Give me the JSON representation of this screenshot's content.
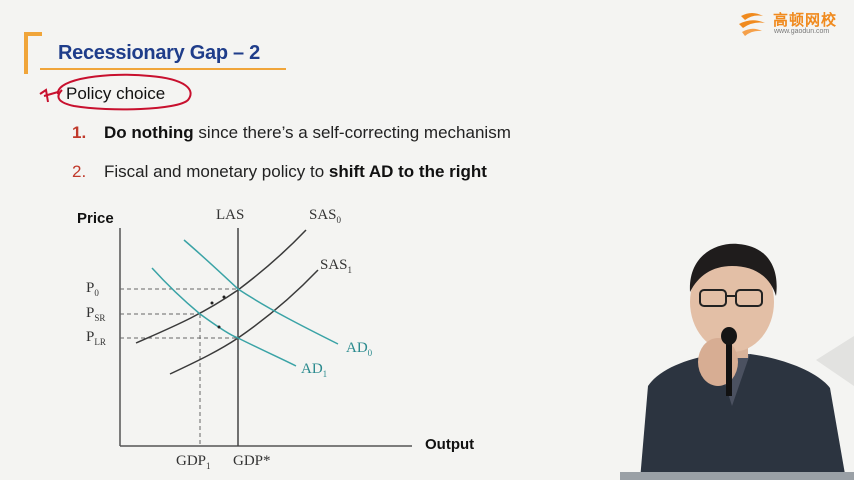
{
  "logo": {
    "name": "高顿网校",
    "url": "www.gaodun.com"
  },
  "slide": {
    "title": "Recessionary Gap – 2",
    "policy_label": "Policy choice",
    "items": [
      {
        "number": "1.",
        "bold": "Do nothing",
        "rest": " since there’s a self-correcting mechanism"
      },
      {
        "number": "2.",
        "text": "Fiscal and monetary policy to ",
        "bold": "shift AD to the right"
      }
    ]
  },
  "chart_labels": {
    "y_axis": "Price",
    "x_axis": "Output",
    "las": "LAS",
    "sas0": "SAS",
    "sas0_sub": "0",
    "sas1": "SAS",
    "sas1_sub": "1",
    "ad0": "AD",
    "ad0_sub": "0",
    "ad1": "AD",
    "ad1_sub": "1",
    "p0": "P",
    "p0_sub": "0",
    "psr": "P",
    "psr_sub": "SR",
    "plr": "P",
    "plr_sub": "LR",
    "gdp1": "GDP",
    "gdp1_sub": "1",
    "gdpstar": "GDP*"
  },
  "colors": {
    "title_blue": "#1f3d8a",
    "accent_orange": "#f0a53a",
    "number_red": "#c0392b",
    "annotation_red": "#c8102e",
    "ad_teal": "#3aa3a6",
    "curve_dark": "#3a3a3a"
  }
}
